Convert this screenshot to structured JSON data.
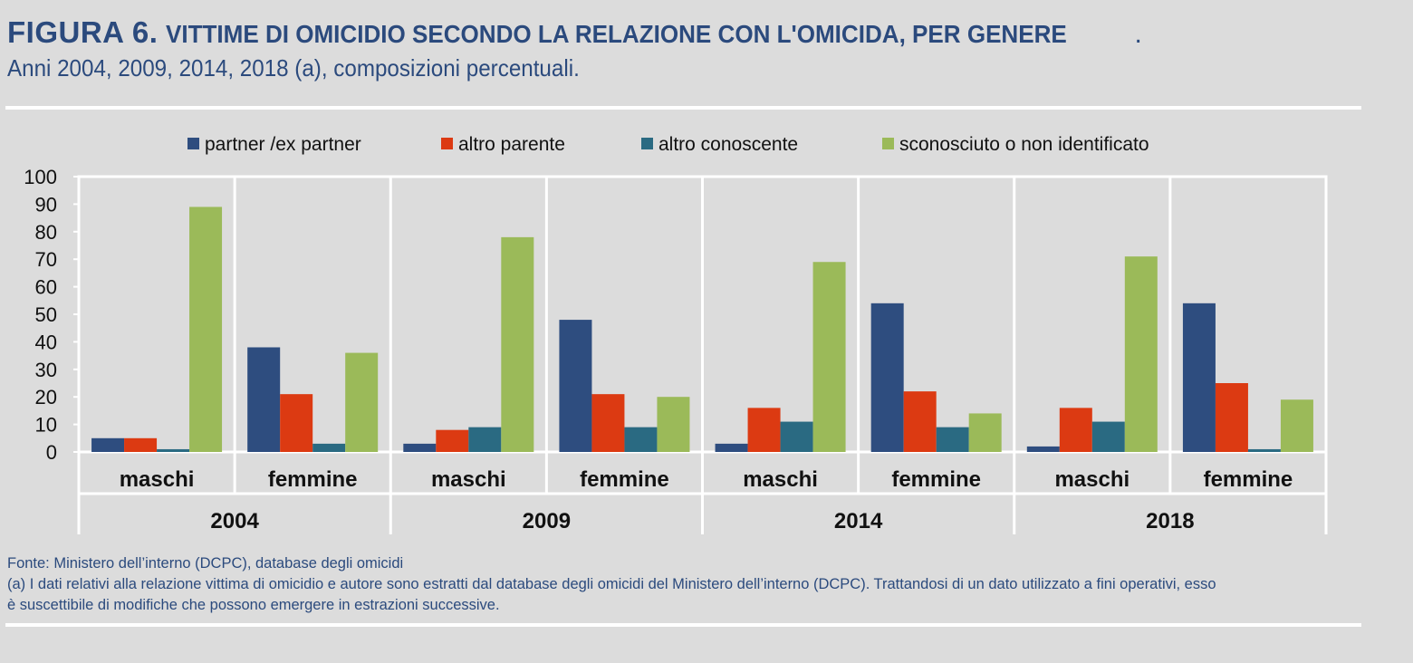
{
  "header": {
    "figure_label": "FIGURA 6.",
    "title": "VITTIME DI OMICIDIO SECONDO LA RELAZIONE CON L'OMICIDA, PER GENERE",
    "title_end": ".",
    "subtitle": "Anni 2004, 2009, 2014, 2018 (a), composizioni percentuali."
  },
  "notes": {
    "source": "Fonte: Ministero dell’interno (DCPC), database degli omicidi",
    "note_a_line1": "(a) I dati relativi alla relazione vittima di omicidio e autore sono estratti dal database degli omicidi del Ministero dell’interno (DCPC). Trattandosi di un dato utilizzato a fini operativi, esso",
    "note_a_line2": "è suscettibile di modifiche che possono emergere in estrazioni successive."
  },
  "chart_data": {
    "type": "bar",
    "ylim": [
      0,
      100
    ],
    "yticks": [
      0,
      10,
      20,
      30,
      40,
      50,
      60,
      70,
      80,
      90,
      100
    ],
    "grid": false,
    "legend_position": "top",
    "years": [
      "2004",
      "2009",
      "2014",
      "2018"
    ],
    "genders": [
      "maschi",
      "femmine"
    ],
    "categories": [
      "maschi 2004",
      "femmine 2004",
      "maschi 2009",
      "femmine 2009",
      "maschi 2014",
      "femmine 2014",
      "maschi 2018",
      "femmine 2018"
    ],
    "series": [
      {
        "name": "partner /ex partner",
        "color": "#2e4d7f",
        "values": [
          5,
          38,
          3,
          48,
          3,
          54,
          2,
          54
        ]
      },
      {
        "name": "altro parente",
        "color": "#dc3a12",
        "values": [
          5,
          21,
          8,
          21,
          16,
          22,
          16,
          25
        ]
      },
      {
        "name": "altro conoscente",
        "color": "#2a6a82",
        "values": [
          1,
          3,
          9,
          9,
          11,
          9,
          11,
          1
        ]
      },
      {
        "name": "sconosciuto o non identificato",
        "color": "#9bba59",
        "values": [
          89,
          36,
          78,
          20,
          69,
          14,
          71,
          19
        ]
      }
    ]
  }
}
